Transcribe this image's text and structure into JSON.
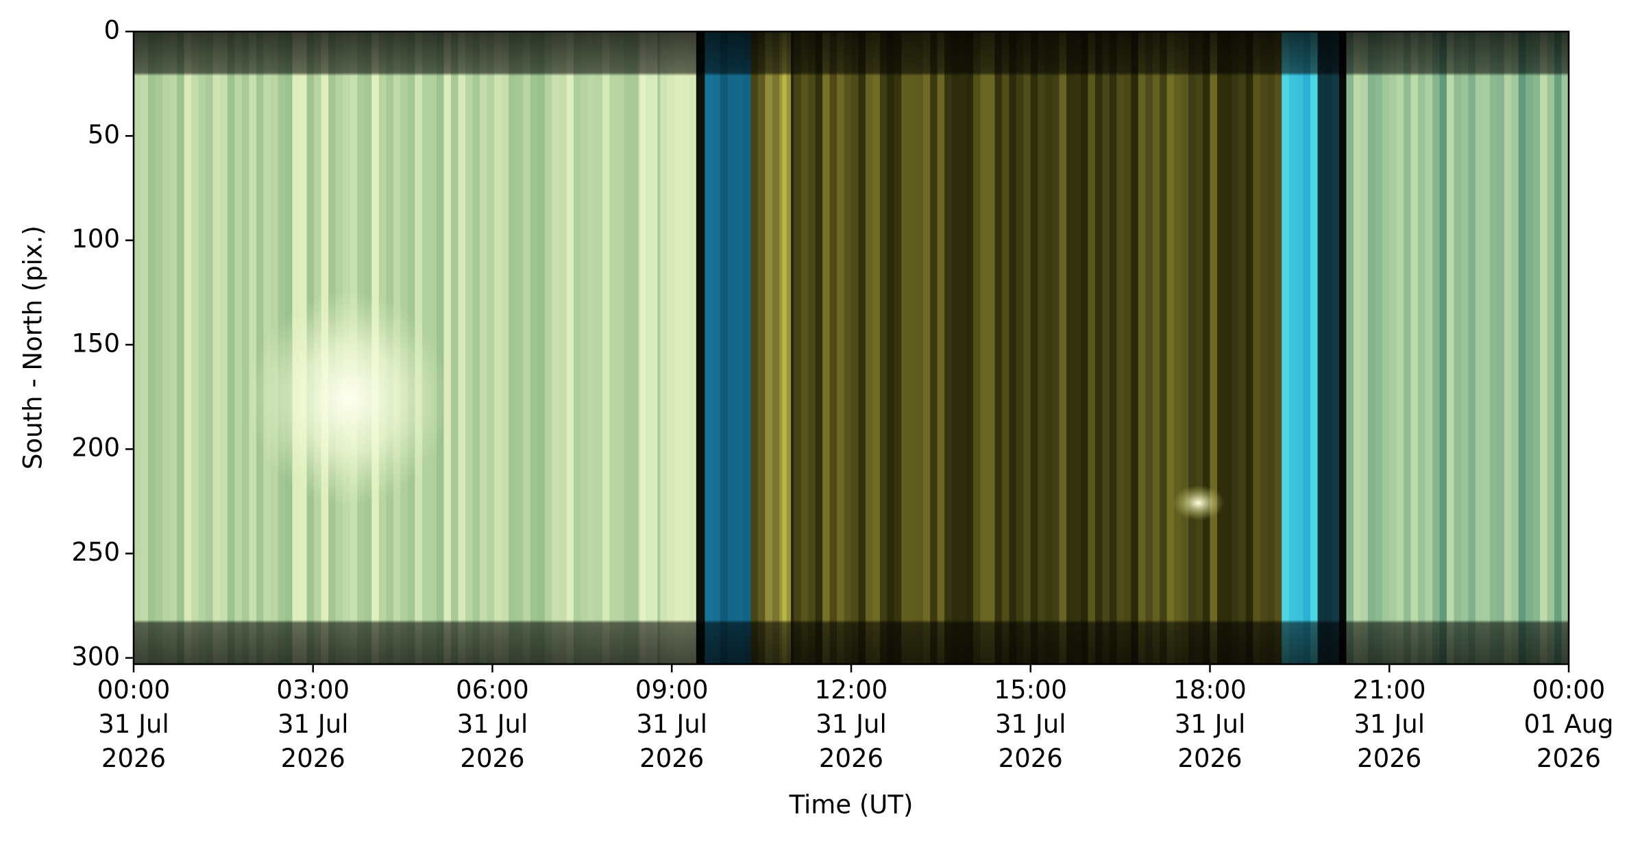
{
  "chart_data": {
    "type": "image",
    "xlabel": "Time (UT)",
    "ylabel": "South - North (pix.)",
    "xlim": [
      0,
      24
    ],
    "xticks": [
      {
        "value": 0,
        "label": "00:00\n31 Jul\n2026"
      },
      {
        "value": 3,
        "label": "03:00\n31 Jul\n2026"
      },
      {
        "value": 6,
        "label": "06:00\n31 Jul\n2026"
      },
      {
        "value": 9,
        "label": "09:00\n31 Jul\n2026"
      },
      {
        "value": 12,
        "label": "12:00\n31 Jul\n2026"
      },
      {
        "value": 15,
        "label": "15:00\n31 Jul\n2026"
      },
      {
        "value": 18,
        "label": "18:00\n31 Jul\n2026"
      },
      {
        "value": 21,
        "label": "21:00\n31 Jul\n2026"
      },
      {
        "value": 24,
        "label": "00:00\n01 Aug\n2026"
      }
    ],
    "ylim": [
      303,
      0
    ],
    "yticks": [
      0,
      50,
      100,
      150,
      200,
      250,
      300
    ]
  }
}
